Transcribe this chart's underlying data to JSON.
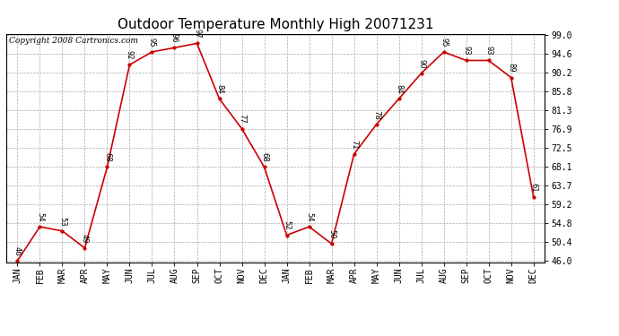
{
  "title": "Outdoor Temperature Monthly High 20071231",
  "copyright": "Copyright 2008 Cartronics.com",
  "x_labels": [
    "JAN",
    "FEB",
    "MAR",
    "APR",
    "MAY",
    "JUN",
    "JUL",
    "AUG",
    "SEP",
    "OCT",
    "NOV",
    "DEC",
    "JAN",
    "FEB",
    "MAR",
    "APR",
    "MAY",
    "JUN",
    "JUL",
    "AUG",
    "SEP",
    "OCT",
    "NOV",
    "DEC"
  ],
  "values": [
    46,
    54,
    53,
    49,
    68,
    92,
    95,
    96,
    97,
    84,
    77,
    68,
    52,
    54,
    50,
    71,
    78,
    84,
    90,
    95,
    93,
    93,
    89,
    61
  ],
  "y_ticks": [
    46.0,
    50.4,
    54.8,
    59.2,
    63.7,
    68.1,
    72.5,
    76.9,
    81.3,
    85.8,
    90.2,
    94.6,
    99.0
  ],
  "y_min": 46.0,
  "y_max": 99.0,
  "line_color": "#cc0000",
  "marker_color": "#cc0000",
  "bg_color": "#ffffff",
  "grid_color": "#aaaaaa",
  "title_fontsize": 11,
  "label_fontsize": 6,
  "tick_fontsize": 7,
  "copyright_fontsize": 6.5
}
